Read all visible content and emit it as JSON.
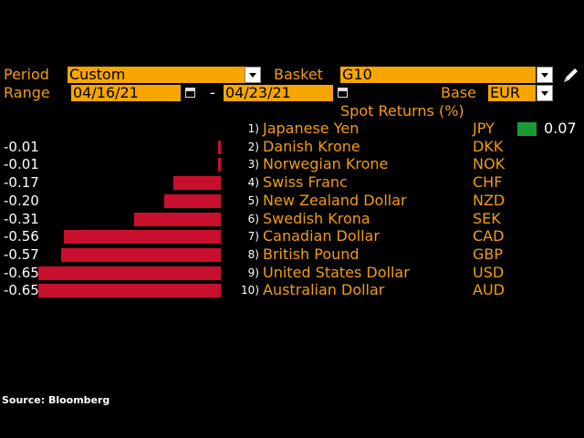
{
  "controls": {
    "period_label": "Period",
    "period_value": "Custom",
    "basket_label": "Basket",
    "basket_value": "G10",
    "range_label": "Range",
    "range_start": "04/16/21",
    "range_sep": "-",
    "range_end": "04/23/21",
    "base_label": "Base",
    "base_value": "EUR"
  },
  "chart_title": "Spot Returns (%)",
  "source": "Source: Bloomberg",
  "colors": {
    "negative": "#c8102e",
    "positive": "#1a9a33",
    "accent": "#f39c12",
    "field": "#f7a600"
  },
  "chart_data": {
    "type": "bar",
    "title": "Spot Returns (%)",
    "rows": [
      {
        "rank": "1)",
        "currency": "Japanese Yen",
        "code": "JPY",
        "value": 0.07,
        "label": "0.07"
      },
      {
        "rank": "2)",
        "currency": "Danish Krone",
        "code": "DKK",
        "value": -0.01,
        "label": "-0.01"
      },
      {
        "rank": "3)",
        "currency": "Norwegian Krone",
        "code": "NOK",
        "value": -0.01,
        "label": "-0.01"
      },
      {
        "rank": "4)",
        "currency": "Swiss Franc",
        "code": "CHF",
        "value": -0.17,
        "label": "-0.17"
      },
      {
        "rank": "5)",
        "currency": "New Zealand Dollar",
        "code": "NZD",
        "value": -0.2,
        "label": "-0.20"
      },
      {
        "rank": "6)",
        "currency": "Swedish Krona",
        "code": "SEK",
        "value": -0.31,
        "label": "-0.31"
      },
      {
        "rank": "7)",
        "currency": "Canadian Dollar",
        "code": "CAD",
        "value": -0.56,
        "label": "-0.56"
      },
      {
        "rank": "8)",
        "currency": "British Pound",
        "code": "GBP",
        "value": -0.57,
        "label": "-0.57"
      },
      {
        "rank": "9)",
        "currency": "United States Dollar",
        "code": "USD",
        "value": -0.65,
        "label": "-0.65"
      },
      {
        "rank": "10)",
        "currency": "Australian Dollar",
        "code": "AUD",
        "value": -0.65,
        "label": "-0.65"
      }
    ]
  }
}
